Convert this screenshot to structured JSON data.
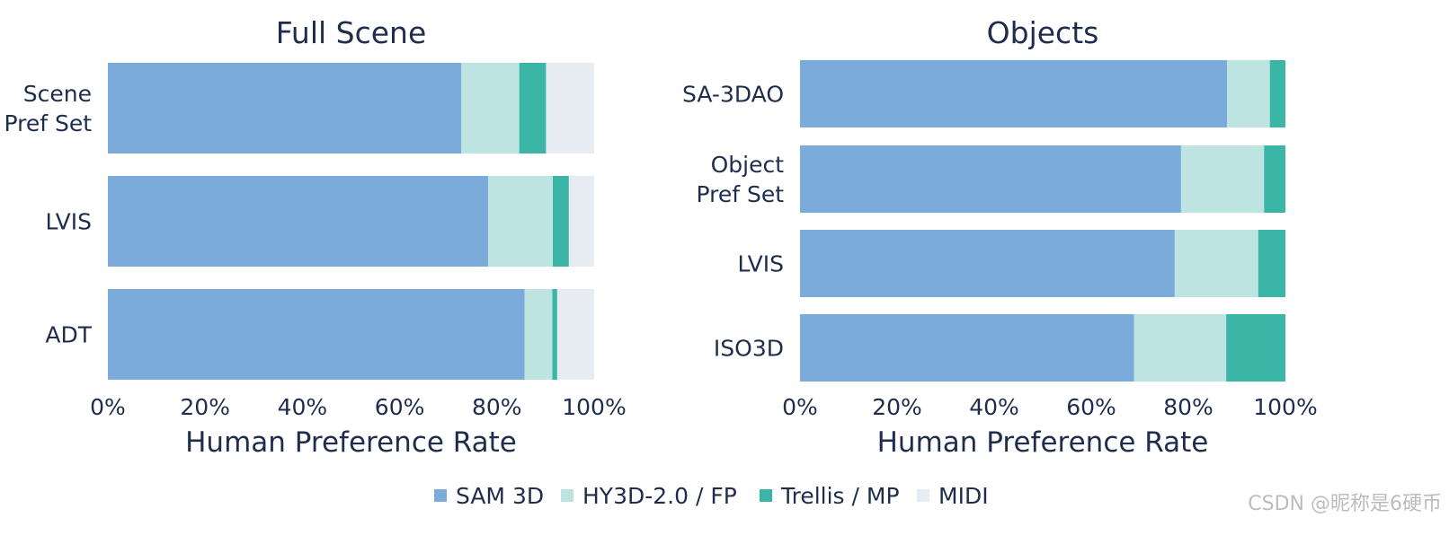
{
  "colors": {
    "text": "#1f2d4d",
    "series": [
      "#7aabdb",
      "#bde4e1",
      "#3bb5a5",
      "#e7ecf3"
    ]
  },
  "legend": {
    "items": [
      "SAM 3D",
      "HY3D-2.0 / FP",
      "Trellis / MP",
      "MIDI"
    ]
  },
  "watermark": "CSDN @昵称是6硬币",
  "chart_data": [
    {
      "type": "bar",
      "orientation": "horizontal",
      "stacked": true,
      "title": "Full Scene",
      "xlabel": "Human Preference Rate",
      "ylabel": "",
      "xlim": [
        0,
        100
      ],
      "xticks": [
        "0%",
        "20%",
        "40%",
        "60%",
        "80%",
        "100%"
      ],
      "categories": [
        [
          "Scene",
          "Pref Set"
        ],
        [
          "LVIS"
        ],
        [
          "ADT"
        ]
      ],
      "series": [
        {
          "name": "SAM 3D",
          "values": [
            72.7,
            78.2,
            85.7
          ]
        },
        {
          "name": "HY3D-2.0 / FP",
          "values": [
            11.9,
            13.3,
            5.7
          ]
        },
        {
          "name": "Trellis / MP",
          "values": [
            5.5,
            3.3,
            1.0
          ]
        },
        {
          "name": "MIDI",
          "values": [
            9.9,
            5.2,
            7.6
          ]
        }
      ]
    },
    {
      "type": "bar",
      "orientation": "horizontal",
      "stacked": true,
      "title": "Objects",
      "xlabel": "Human Preference Rate",
      "ylabel": "",
      "xlim": [
        0,
        100
      ],
      "xticks": [
        "0%",
        "20%",
        "40%",
        "60%",
        "80%",
        "100%"
      ],
      "categories": [
        [
          "SA-3DAO"
        ],
        [
          "Object",
          "Pref Set"
        ],
        [
          "LVIS"
        ],
        [
          "ISO3D"
        ]
      ],
      "series": [
        {
          "name": "SAM 3D",
          "values": [
            88.0,
            78.5,
            77.2,
            68.8
          ]
        },
        {
          "name": "HY3D-2.0 / FP",
          "values": [
            8.8,
            17.1,
            17.2,
            19.0
          ]
        },
        {
          "name": "Trellis / MP",
          "values": [
            3.2,
            4.4,
            5.6,
            12.2
          ]
        }
      ]
    }
  ]
}
